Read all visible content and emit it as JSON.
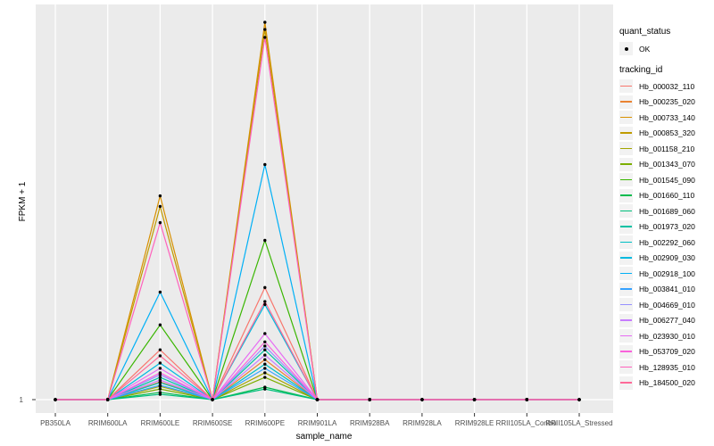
{
  "figure": {
    "y_axis_label": "FPKM + 1",
    "x_axis_label": "sample_name",
    "y_tick_label": "1"
  },
  "legend": {
    "quant_status_title": "quant_status",
    "quant_status_items": [
      {
        "label": "OK",
        "symbol": "black-point"
      }
    ],
    "tracking_id_title": "tracking_id"
  },
  "chart_data": {
    "type": "line",
    "title": "",
    "xlabel": "sample_name",
    "ylabel": "FPKM + 1",
    "y_axis": {
      "tick_labels": [
        "1"
      ],
      "note": "only the value 1 is labeled on the y axis; series values below are relative peak heights (fraction of tallest peak) above the y=1 baseline"
    },
    "legend_position": "right",
    "panel_bg": "#EBEBEB",
    "gridline_color": "#FFFFFF",
    "point_color": "#000000",
    "categories": [
      "PB350LA",
      "RRIM600LA",
      "RRIM600LE",
      "RRIM600SE",
      "RRIM600PE",
      "RRIM901LA",
      "RRIM928BA",
      "RRIM928LA",
      "RRIM928LE",
      "RRII105LA_Control",
      "RRII105LA_Stressed"
    ],
    "series": [
      {
        "name": "Hb_000032_110",
        "color": "#F8766D",
        "values": [
          0,
          0,
          0.132,
          0,
          0.297,
          0,
          0,
          0,
          0,
          0,
          0
        ]
      },
      {
        "name": "Hb_000235_020",
        "color": "#EA8331",
        "values": [
          0,
          0,
          0.047,
          0,
          0.106,
          0,
          0,
          0,
          0,
          0,
          0
        ]
      },
      {
        "name": "Hb_000733_140",
        "color": "#D89000",
        "values": [
          0,
          0,
          0.54,
          0,
          1.0,
          0,
          0,
          0,
          0,
          0,
          0
        ]
      },
      {
        "name": "Hb_000853_320",
        "color": "#C09B00",
        "values": [
          0,
          0,
          0.512,
          0,
          0.981,
          0,
          0,
          0,
          0,
          0,
          0
        ]
      },
      {
        "name": "Hb_001158_210",
        "color": "#A3A500",
        "values": [
          0,
          0,
          0.035,
          0,
          0.071,
          0,
          0,
          0,
          0,
          0,
          0
        ]
      },
      {
        "name": "Hb_001343_070",
        "color": "#7CAE00",
        "values": [
          0,
          0,
          0.028,
          0,
          0.059,
          0,
          0,
          0,
          0,
          0,
          0
        ]
      },
      {
        "name": "Hb_001545_090",
        "color": "#39B600",
        "values": [
          0,
          0,
          0.198,
          0,
          0.422,
          0,
          0,
          0,
          0,
          0,
          0
        ]
      },
      {
        "name": "Hb_001660_110",
        "color": "#00BB4E",
        "values": [
          0,
          0,
          0.019,
          0,
          0.033,
          0,
          0,
          0,
          0,
          0,
          0
        ]
      },
      {
        "name": "Hb_001689_060",
        "color": "#00BF7D",
        "values": [
          0,
          0,
          0.014,
          0,
          0.028,
          0,
          0,
          0,
          0,
          0,
          0
        ]
      },
      {
        "name": "Hb_001973_020",
        "color": "#00C1A3",
        "values": [
          0,
          0,
          0.059,
          0,
          0.132,
          0,
          0,
          0,
          0,
          0,
          0
        ]
      },
      {
        "name": "Hb_002292_060",
        "color": "#00BFC4",
        "values": [
          0,
          0,
          0.045,
          0,
          0.094,
          0,
          0,
          0,
          0,
          0,
          0
        ]
      },
      {
        "name": "Hb_002909_030",
        "color": "#00BAE0",
        "values": [
          0,
          0,
          0.097,
          0,
          0.252,
          0,
          0,
          0,
          0,
          0,
          0
        ]
      },
      {
        "name": "Hb_002918_100",
        "color": "#00B0F6",
        "values": [
          0,
          0,
          0.285,
          0,
          0.623,
          0,
          0,
          0,
          0,
          0,
          0
        ]
      },
      {
        "name": "Hb_003841_010",
        "color": "#35A2FF",
        "values": [
          0,
          0,
          0.038,
          0,
          0.083,
          0,
          0,
          0,
          0,
          0,
          0
        ]
      },
      {
        "name": "Hb_004669_010",
        "color": "#9590FF",
        "values": [
          0,
          0,
          0.066,
          0,
          0.142,
          0,
          0,
          0,
          0,
          0,
          0
        ]
      },
      {
        "name": "Hb_006277_040",
        "color": "#C77CFF",
        "values": [
          0,
          0,
          0.052,
          0,
          0.118,
          0,
          0,
          0,
          0,
          0,
          0
        ]
      },
      {
        "name": "Hb_023930_010",
        "color": "#E76BF3",
        "values": [
          0,
          0,
          0.083,
          0,
          0.175,
          0,
          0,
          0,
          0,
          0,
          0
        ]
      },
      {
        "name": "Hb_053709_020",
        "color": "#FA62DB",
        "values": [
          0,
          0,
          0.071,
          0,
          0.153,
          0,
          0,
          0,
          0,
          0,
          0
        ]
      },
      {
        "name": "Hb_128935_010",
        "color": "#FF62BC",
        "values": [
          0,
          0,
          0.469,
          0,
          0.96,
          0,
          0,
          0,
          0,
          0,
          0
        ]
      },
      {
        "name": "Hb_184500_020",
        "color": "#FF6A98",
        "values": [
          0,
          0,
          0.116,
          0,
          0.26,
          0,
          0,
          0,
          0,
          0,
          0
        ]
      }
    ]
  }
}
